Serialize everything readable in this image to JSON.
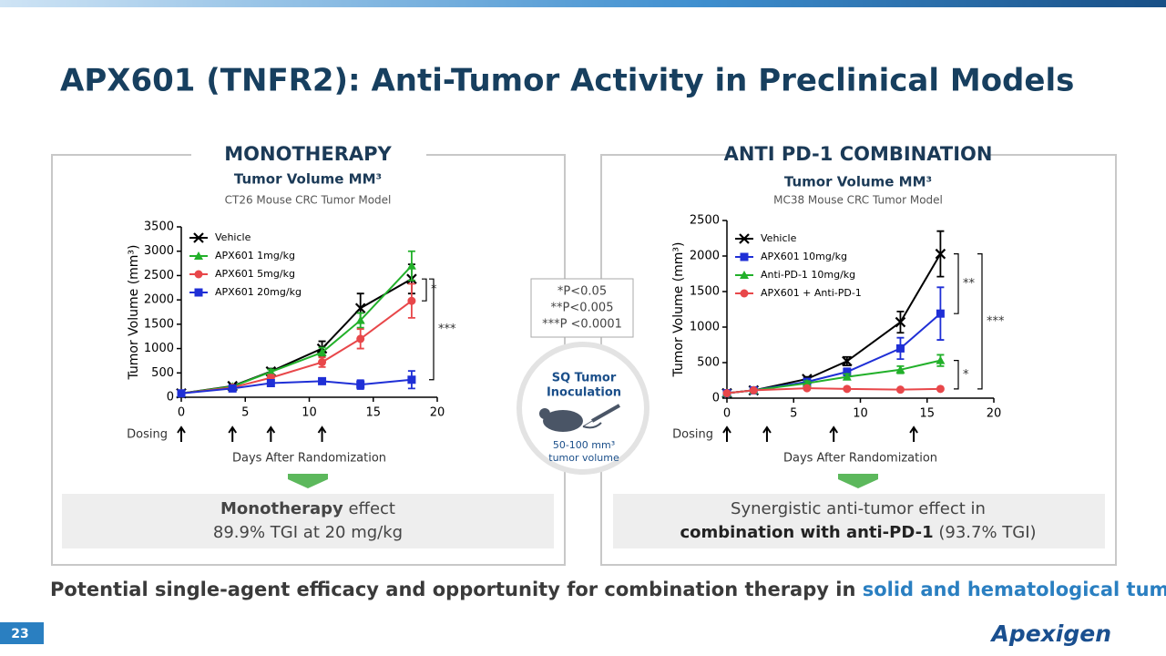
{
  "title": "APX601 (TNFR2): Anti-Tumor Activity in Preclinical Models",
  "chart_data": [
    {
      "type": "line",
      "panel_title": "MONOTHERAPY",
      "title": "Tumor Volume MM³",
      "subtitle": "CT26 Mouse CRC Tumor Model",
      "xlabel": "Days After Randomization",
      "ylabel": "Tumor Volume (mm³)",
      "x": [
        0,
        4,
        7,
        11,
        14,
        18
      ],
      "series": [
        {
          "name": "Vehicle",
          "color": "#000000",
          "marker": "x",
          "values": [
            80,
            230,
            530,
            1000,
            1830,
            2430
          ],
          "errors": [
            0,
            30,
            60,
            150,
            300,
            300
          ]
        },
        {
          "name": "APX601 1mg/kg",
          "color": "#22b02a",
          "marker": "triangle",
          "values": [
            80,
            220,
            520,
            920,
            1580,
            2700
          ],
          "errors": [
            0,
            20,
            50,
            100,
            150,
            300
          ]
        },
        {
          "name": "APX601 5mg/kg",
          "color": "#e8474a",
          "marker": "circle",
          "values": [
            80,
            200,
            400,
            720,
            1200,
            1980
          ],
          "errors": [
            0,
            20,
            60,
            100,
            200,
            350
          ]
        },
        {
          "name": "APX601 20mg/kg",
          "color": "#1f2fd6",
          "marker": "square",
          "values": [
            80,
            180,
            290,
            330,
            260,
            360
          ],
          "errors": [
            0,
            20,
            40,
            60,
            90,
            180
          ]
        }
      ],
      "xlim": [
        0,
        20
      ],
      "xticks": [
        0,
        5,
        10,
        15,
        20
      ],
      "ylim": [
        0,
        3500
      ],
      "yticks": [
        0,
        500,
        1000,
        1500,
        2000,
        2500,
        3000,
        3500
      ],
      "annotations": [
        "*",
        "***"
      ],
      "dosing_label": "Dosing",
      "dosing_days": [
        0,
        4,
        7,
        11
      ],
      "effect": {
        "bold": "Monotherapy",
        "text": " effect",
        "line2": "89.9% TGI at 20 mg/kg"
      }
    },
    {
      "type": "line",
      "panel_title": "ANTI PD-1 COMBINATION",
      "title": "Tumor Volume MM³",
      "subtitle": "MC38 Mouse CRC Tumor Model",
      "xlabel": "Days After Randomization",
      "ylabel": "Tumor Volume (mm³)",
      "x": [
        0,
        2,
        6,
        9,
        13,
        16
      ],
      "series": [
        {
          "name": "Vehicle",
          "color": "#000000",
          "marker": "x",
          "values": [
            70,
            110,
            270,
            520,
            1070,
            2030
          ],
          "errors": [
            10,
            20,
            30,
            60,
            150,
            320
          ]
        },
        {
          "name": "APX601 10mg/kg",
          "color": "#1f2fd6",
          "marker": "square",
          "values": [
            70,
            110,
            230,
            370,
            700,
            1190
          ],
          "errors": [
            10,
            15,
            30,
            50,
            150,
            370
          ]
        },
        {
          "name": "Anti-PD-1  10mg/kg",
          "color": "#22b02a",
          "marker": "triangle",
          "values": [
            70,
            110,
            210,
            300,
            400,
            530
          ],
          "errors": [
            10,
            15,
            30,
            40,
            50,
            80
          ]
        },
        {
          "name": "APX601 + Anti-PD-1",
          "color": "#e8474a",
          "marker": "circle",
          "values": [
            70,
            110,
            140,
            130,
            120,
            130
          ],
          "errors": [
            10,
            10,
            15,
            15,
            10,
            10
          ]
        }
      ],
      "xlim": [
        0,
        20
      ],
      "xticks": [
        0,
        5,
        10,
        15,
        20
      ],
      "ylim": [
        0,
        2500
      ],
      "yticks": [
        0,
        500,
        1000,
        1500,
        2000,
        2500
      ],
      "annotations": [
        "**",
        "***",
        "*"
      ],
      "dosing_label": "Dosing",
      "dosing_days": [
        0,
        3,
        8,
        14
      ],
      "effect": {
        "line1": "Synergistic anti-tumor effect in",
        "bold": "combination with anti-PD-1",
        "text": " (93.7% TGI)"
      }
    }
  ],
  "stats": [
    "*P<0.05",
    "**P<0.005",
    "***P <0.0001"
  ],
  "inoculation": {
    "title1": "SQ Tumor",
    "title2": "Inoculation",
    "line1": "50-100 mm³",
    "line2": "tumor volume"
  },
  "footer": {
    "text": "Potential single-agent efficacy and opportunity for combination therapy in ",
    "highlight": "solid and hematological tumors"
  },
  "page_number": "23",
  "logo": "Apexigen"
}
